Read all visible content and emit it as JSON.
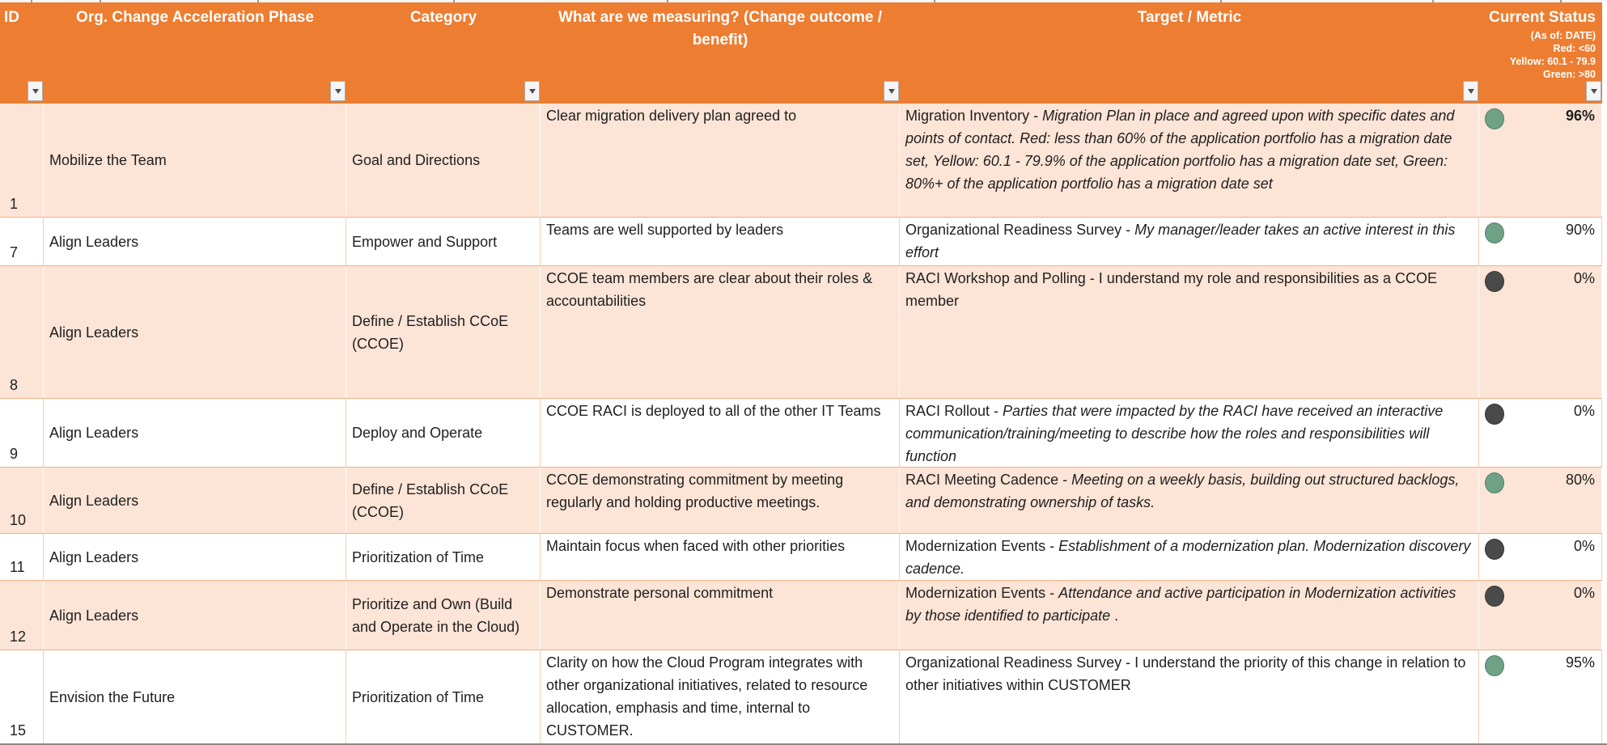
{
  "table": {
    "columns": [
      {
        "key": "id",
        "label": "ID"
      },
      {
        "key": "phase",
        "label": "Org. Change Acceleration Phase"
      },
      {
        "key": "category",
        "label": "Category"
      },
      {
        "key": "measuring",
        "label": "What are we measuring? (Change outcome / benefit)"
      },
      {
        "key": "target",
        "label": "Target / Metric"
      },
      {
        "key": "status",
        "label": "Current Status"
      }
    ],
    "status_legend": [
      "(As of: DATE)",
      "Red: <60",
      "Yellow: 60.1 - 79.9",
      "Green: >80"
    ],
    "colors": {
      "header_bg": "#ED7D31",
      "header_text": "#FFFFFF",
      "band_bg": "#FCE4D6",
      "status_green": "#6FA187",
      "status_green_border": "#527E68",
      "status_dark": "#4A4A4A",
      "status_dark_border": "#333333"
    },
    "rows": [
      {
        "id": "1",
        "phase": "Mobilize the Team",
        "category": "Goal and Directions",
        "measuring": "Clear migration delivery plan agreed to",
        "target_lead": "Migration Inventory  - ",
        "target_italic": "Migration Plan in place and agreed upon with specific dates and points of contact. Red: less than 60% of the application portfolio has a migration date set, Yellow: 60.1 - 79.9% of the application portfolio has a migration date set, Green: 80%+ of the application portfolio has a migration date set",
        "target_tail": "",
        "status": "green",
        "percent": "96%",
        "percent_bold": true
      },
      {
        "id": "7",
        "phase": "Align Leaders",
        "category": "Empower and Support",
        "measuring": "Teams are well supported by leaders",
        "target_lead": "Organizational Readiness Survey - ",
        "target_italic": "My manager/leader takes an active interest in this effort",
        "target_tail": "",
        "status": "green",
        "percent": "90%",
        "percent_bold": false
      },
      {
        "id": "8",
        "phase": "Align Leaders",
        "category": "Define / Establish CCoE (CCOE)",
        "measuring": "CCOE team members are clear about their roles & accountabilities",
        "target_lead": "RACI Workshop and Polling - I understand my role and responsibilities as a CCOE member",
        "target_italic": "",
        "target_tail": "",
        "status": "dark",
        "percent": "0%",
        "percent_bold": false
      },
      {
        "id": "9",
        "phase": "Align Leaders",
        "category": "Deploy and Operate",
        "measuring": "CCOE RACI is deployed to all of the other IT Teams",
        "target_lead": "RACI Rollout - ",
        "target_italic": "Parties that were impacted by the RACI have received an interactive communication/training/meeting to describe how the roles and responsibilities will function",
        "target_tail": "",
        "status": "dark",
        "percent": "0%",
        "percent_bold": false
      },
      {
        "id": "10",
        "phase": "Align Leaders",
        "category": "Define / Establish CCoE (CCOE)",
        "measuring": "CCOE demonstrating commitment by meeting regularly and holding productive meetings.",
        "target_lead": "RACI Meeting Cadence - ",
        "target_italic": "Meeting on a weekly basis, building out structured backlogs, and demonstrating ownership of tasks.",
        "target_tail": "",
        "status": "green",
        "percent": "80%",
        "percent_bold": false
      },
      {
        "id": "11",
        "phase": "Align Leaders",
        "category": "Prioritization of Time",
        "measuring": "Maintain focus when faced with other priorities",
        "target_lead": "Modernization Events -  ",
        "target_italic": "Establishment of a modernization plan. Modernization discovery cadence.",
        "target_tail": "",
        "status": "dark",
        "percent": "0%",
        "percent_bold": false
      },
      {
        "id": "12",
        "phase": "Align Leaders",
        "category": "Prioritize and Own (Build and Operate in the Cloud)",
        "measuring": "Demonstrate personal commitment",
        "target_lead": "Modernization Events -  ",
        "target_italic": "Attendance and active participation in Modernization activities by those identified to participate",
        "target_tail": " .",
        "status": "dark",
        "percent": "0%",
        "percent_bold": false
      },
      {
        "id": "15",
        "phase": "Envision the Future",
        "category": "Prioritization of Time",
        "measuring": "Clarity on how the Cloud Program integrates with other organizational initiatives, related to resource allocation, emphasis and time, internal to CUSTOMER.",
        "target_lead": "Organizational Readiness Survey - I understand the priority of this change in relation to other initiatives within CUSTOMER",
        "target_italic": "",
        "target_tail": "",
        "status": "green",
        "percent": "95%",
        "percent_bold": false
      }
    ]
  }
}
